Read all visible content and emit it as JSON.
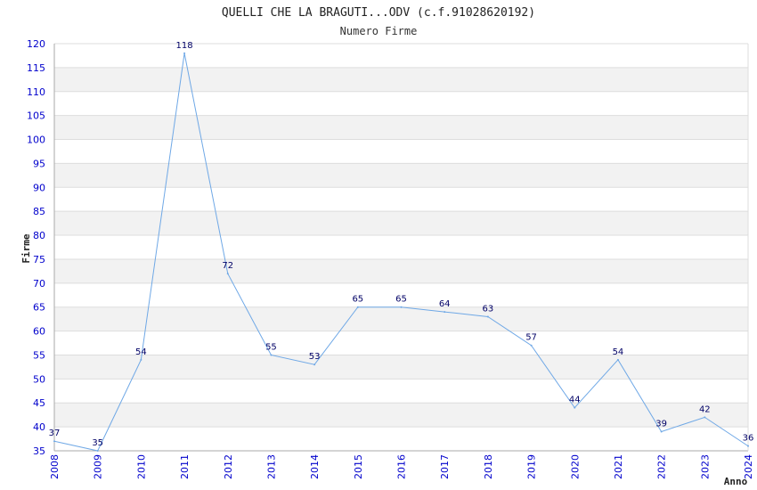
{
  "chart_data": {
    "type": "line",
    "title": "QUELLI CHE LA BRAGUTI...ODV (c.f.91028620192)",
    "subtitle": "Numero Firme",
    "ylabel": "Firme",
    "xlabel": "Anno",
    "ylim": [
      35,
      120
    ],
    "ystep": 5,
    "categories": [
      "2008",
      "2009",
      "2010",
      "2011",
      "2012",
      "2013",
      "2014",
      "2015",
      "2016",
      "2017",
      "2018",
      "2019",
      "2020",
      "2021",
      "2022",
      "2023",
      "2024"
    ],
    "series": [
      {
        "name": "Numero Firme",
        "values": [
          37,
          35,
          54,
          118,
          72,
          55,
          53,
          65,
          65,
          64,
          63,
          57,
          44,
          54,
          39,
          42,
          36
        ]
      }
    ],
    "colors": {
      "line": "#6fa8e6",
      "tick_text": "#0000cc",
      "label_text": "#000066",
      "band": "#f2f2f2",
      "grid": "#dddddd",
      "axis": "#aaaaaa"
    }
  }
}
